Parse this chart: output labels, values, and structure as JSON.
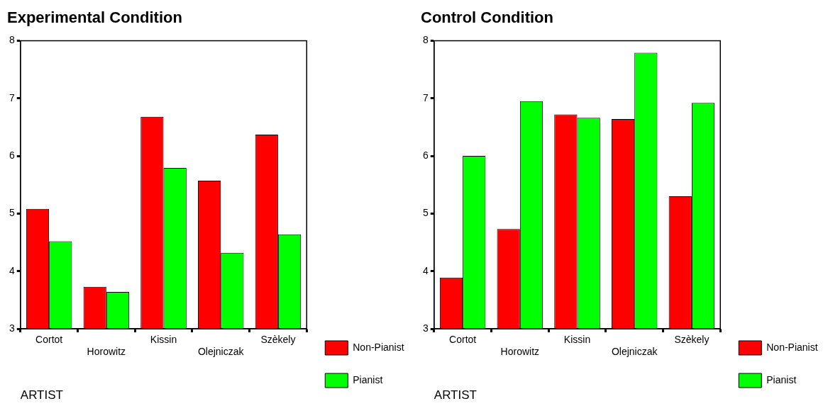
{
  "chart_data": [
    {
      "type": "bar",
      "title": "Experimental Condition",
      "xlabel": "ARTIST",
      "categories": [
        "Cortot",
        "Horowitz",
        "Kissin",
        "Olejniczak",
        "Szèkely"
      ],
      "series": [
        {
          "name": "Non-Pianist",
          "color": "#ff0000",
          "values": [
            5.08,
            3.73,
            6.68,
            5.57,
            6.37
          ]
        },
        {
          "name": "Pianist",
          "color": "#00ff00",
          "values": [
            4.52,
            3.64,
            5.79,
            4.32,
            4.64
          ]
        }
      ],
      "ylim": [
        3,
        8
      ],
      "yticks": [
        3,
        4,
        5,
        6,
        7,
        8
      ],
      "grid": false,
      "legend": "right"
    },
    {
      "type": "bar",
      "title": "Control Condition",
      "xlabel": "ARTIST",
      "categories": [
        "Cortot",
        "Horowitz",
        "Kissin",
        "Olejniczak",
        "Szèkely"
      ],
      "series": [
        {
          "name": "Non-Pianist",
          "color": "#ff0000",
          "values": [
            3.89,
            4.73,
            6.72,
            6.64,
            5.3
          ]
        },
        {
          "name": "Pianist",
          "color": "#00ff00",
          "values": [
            6.0,
            6.95,
            6.66,
            7.79,
            6.92
          ]
        }
      ],
      "ylim": [
        3,
        8
      ],
      "yticks": [
        3,
        4,
        5,
        6,
        7,
        8
      ],
      "grid": false,
      "legend": "right"
    }
  ]
}
